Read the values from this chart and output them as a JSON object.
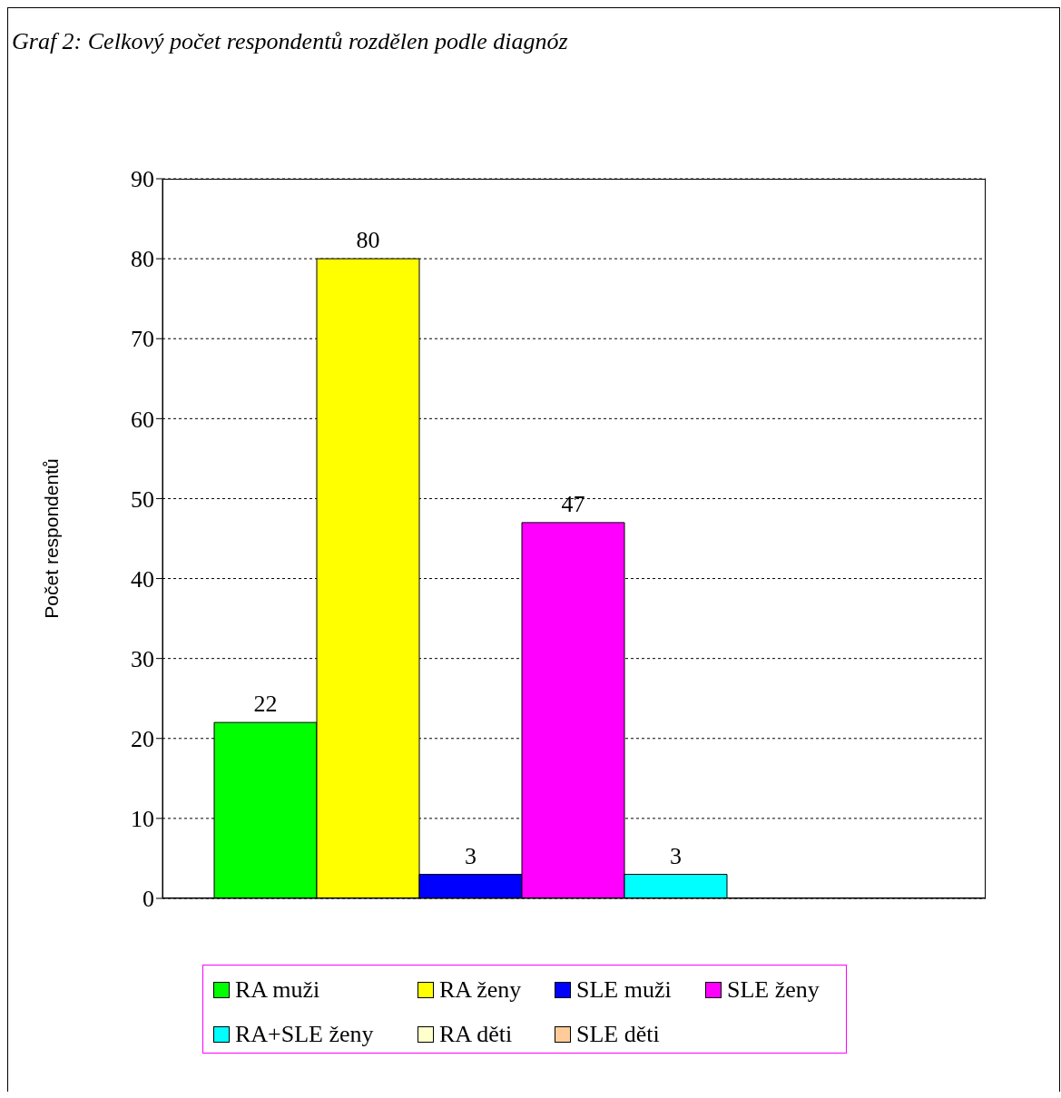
{
  "chart_data": {
    "type": "bar",
    "title": "Graf 2: Celkový počet respondentů rozdělen podle diagnóz",
    "ylabel": "Počet respondentů",
    "categories": [
      null
    ],
    "series": [
      {
        "name": "RA muži",
        "color": "#00ff00",
        "values": [
          22
        ],
        "value_labels": [
          "22"
        ]
      },
      {
        "name": "RA ženy",
        "color": "#ffff00",
        "values": [
          80
        ],
        "value_labels": [
          "80"
        ]
      },
      {
        "name": "SLE muži",
        "color": "#0000ff",
        "values": [
          3
        ],
        "value_labels": [
          "3"
        ]
      },
      {
        "name": "SLE ženy",
        "color": "#ff00ff",
        "values": [
          47
        ],
        "value_labels": [
          "47"
        ]
      },
      {
        "name": "RA+SLE ženy",
        "color": "#00ffff",
        "values": [
          3
        ],
        "value_labels": [
          "3"
        ]
      },
      {
        "name": "RA děti",
        "color": "#ffffcc",
        "values": [
          0
        ],
        "value_labels": [
          null
        ]
      },
      {
        "name": "SLE děti",
        "color": "#ffcc99",
        "values": [
          0
        ],
        "value_labels": [
          null
        ]
      }
    ],
    "ylim": [
      0,
      90
    ],
    "yticks": [
      0,
      10,
      20,
      30,
      40,
      50,
      60,
      70,
      80,
      90
    ],
    "grid": "y",
    "legend": "bottom",
    "tick_labels": "y"
  }
}
